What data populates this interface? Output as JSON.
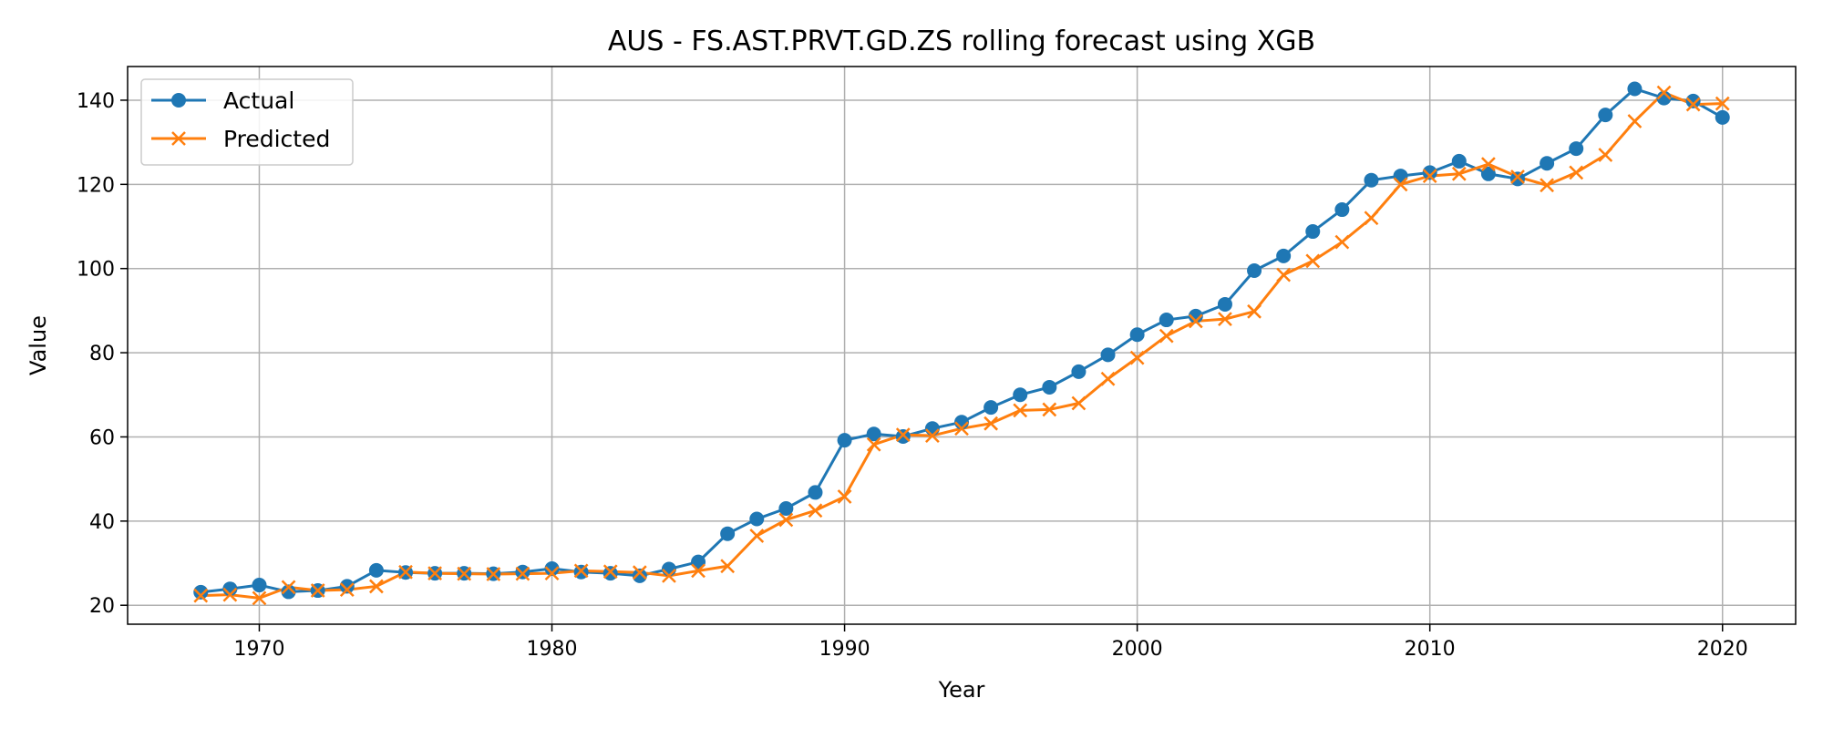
{
  "chart_data": {
    "type": "line",
    "title": "AUS - FS.AST.PRVT.GD.ZS rolling forecast using XGB",
    "xlabel": "Year",
    "ylabel": "Value",
    "xlim": [
      1965.5,
      2022.5
    ],
    "ylim": [
      15.5,
      148
    ],
    "xticks": [
      1970,
      1980,
      1990,
      2000,
      2010,
      2020
    ],
    "yticks": [
      20,
      40,
      60,
      80,
      100,
      120,
      140
    ],
    "grid": true,
    "legend_position": "top-left",
    "x": [
      1968,
      1969,
      1970,
      1971,
      1972,
      1973,
      1974,
      1975,
      1976,
      1977,
      1978,
      1979,
      1980,
      1981,
      1982,
      1983,
      1984,
      1985,
      1986,
      1987,
      1988,
      1989,
      1990,
      1991,
      1992,
      1993,
      1994,
      1995,
      1996,
      1997,
      1998,
      1999,
      2000,
      2001,
      2002,
      2003,
      2004,
      2005,
      2006,
      2007,
      2008,
      2009,
      2010,
      2011,
      2012,
      2013,
      2014,
      2015,
      2016,
      2017,
      2018,
      2019,
      2020
    ],
    "series": [
      {
        "name": "Actual",
        "color": "#1f77b4",
        "marker": "circle",
        "values": [
          23.1,
          23.9,
          24.8,
          23.2,
          23.5,
          24.5,
          28.3,
          27.8,
          27.6,
          27.6,
          27.5,
          27.9,
          28.7,
          27.9,
          27.6,
          27.0,
          28.6,
          30.3,
          37.0,
          40.5,
          43.0,
          46.8,
          59.2,
          60.7,
          60.1,
          62.0,
          63.5,
          67.0,
          70.0,
          71.8,
          75.5,
          79.5,
          84.3,
          87.8,
          88.7,
          91.5,
          99.5,
          103.0,
          108.8,
          114.0,
          121.0,
          122.0,
          122.8,
          125.5,
          122.5,
          121.3,
          125.0,
          128.5,
          136.5,
          142.7,
          140.5,
          139.8,
          135.9
        ]
      },
      {
        "name": "Predicted",
        "color": "#ff7f0e",
        "marker": "x",
        "values": [
          22.3,
          22.5,
          21.7,
          24.3,
          23.5,
          23.7,
          24.5,
          27.9,
          27.6,
          27.5,
          27.4,
          27.5,
          27.6,
          28.2,
          28.0,
          27.8,
          27.0,
          28.2,
          29.3,
          36.5,
          40.3,
          42.5,
          45.8,
          58.2,
          60.5,
          60.3,
          62.0,
          63.2,
          66.3,
          66.5,
          68.0,
          73.8,
          78.8,
          84.0,
          87.5,
          88.0,
          89.8,
          98.5,
          101.8,
          106.3,
          112.0,
          120.0,
          122.0,
          122.5,
          124.8,
          121.8,
          119.8,
          122.8,
          127.0,
          135.0,
          141.8,
          139.0,
          139.2
        ]
      }
    ]
  }
}
